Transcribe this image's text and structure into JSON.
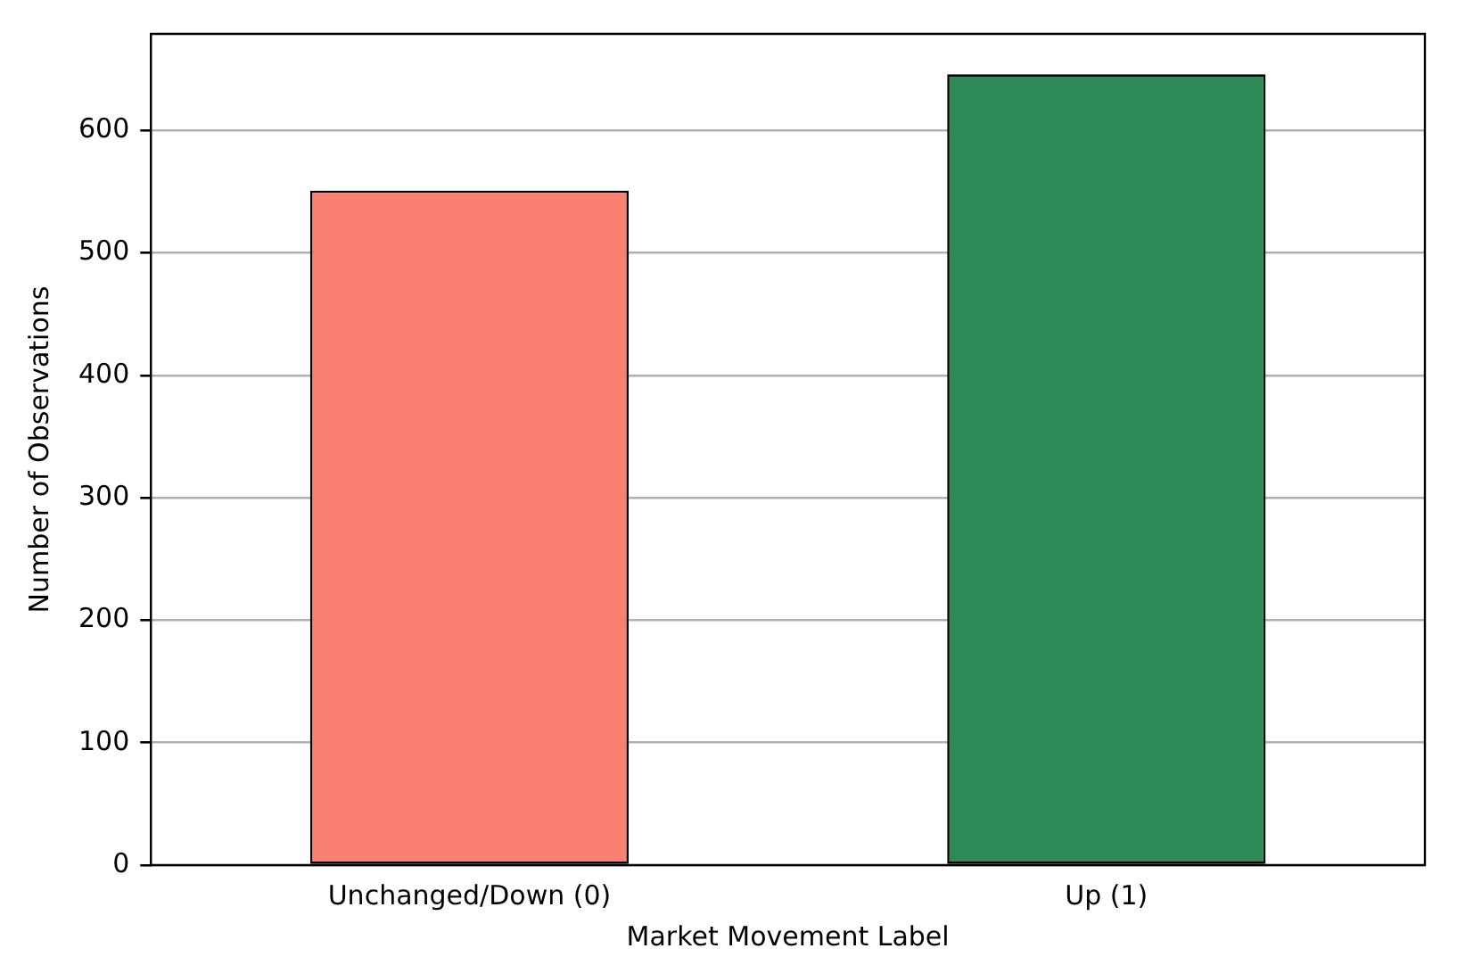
{
  "chart_data": {
    "type": "bar",
    "xlabel": "Market Movement Label",
    "ylabel": "Number of Observations",
    "categories": [
      "Unchanged/Down (0)",
      "Up (1)"
    ],
    "values": [
      551,
      646
    ],
    "colors": [
      "#fa8072",
      "#2e8b57"
    ],
    "ylim": [
      0,
      679
    ],
    "yticks": [
      0,
      100,
      200,
      300,
      400,
      500,
      600
    ],
    "grid": "y",
    "legend": false
  }
}
